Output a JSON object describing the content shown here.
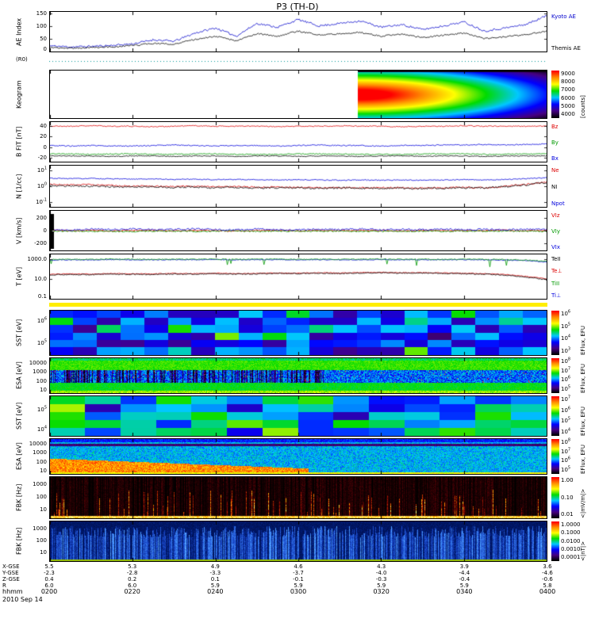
{
  "title": "P3 (TH-D)",
  "date_label": "2010 Sep 14",
  "time_axis": {
    "label": "hhmm",
    "ticks": [
      "0200",
      "0220",
      "0240",
      "0300",
      "0320",
      "0340",
      "0400"
    ]
  },
  "position_rows": [
    {
      "label": "X-GSE",
      "values": [
        "5.5",
        "5.3",
        "4.9",
        "4.6",
        "4.3",
        "3.9",
        "3.6"
      ]
    },
    {
      "label": "Y-GSE",
      "values": [
        "-2.3",
        "-2.8",
        "-3.3",
        "-3.7",
        "-4.0",
        "-4.4",
        "-4.6"
      ]
    },
    {
      "label": "Z-GSE",
      "values": [
        "0.4",
        "0.2",
        "0.1",
        "-0.1",
        "-0.3",
        "-0.4",
        "-0.6"
      ]
    },
    {
      "label": "R",
      "values": [
        "6.0",
        "6.0",
        "5.9",
        "5.9",
        "5.9",
        "5.9",
        "5.8"
      ]
    }
  ],
  "colors": {
    "separator": "#ffee00",
    "strip_line": "#009999",
    "red": "#dd0000",
    "green": "#009900",
    "blue": "#0000dd",
    "black": "#000000"
  },
  "chart_data": [
    {
      "id": "ae",
      "type": "line",
      "ylabel": "AE Index",
      "ylim": [
        0,
        155
      ],
      "yticks": [
        0,
        50,
        100,
        150
      ],
      "seed": 11,
      "series": [
        {
          "name": "Kyoto AE",
          "color": "#0000cc",
          "noise": 4,
          "control": [
            22,
            18,
            20,
            24,
            30,
            46,
            40,
            72,
            92,
            60,
            110,
            95,
            125,
            100,
            110,
            120,
            95,
            105,
            86,
            100,
            116,
            80,
            92,
            106,
            140
          ]
        },
        {
          "name": "Themis AE",
          "color": "#000000",
          "noise": 3,
          "control": [
            16,
            13,
            15,
            18,
            23,
            32,
            29,
            47,
            60,
            41,
            70,
            60,
            80,
            64,
            70,
            75,
            60,
            68,
            55,
            64,
            72,
            50,
            58,
            66,
            80
          ]
        }
      ],
      "right_labels": [
        {
          "text": "Kyoto AE",
          "color": "#0000cc"
        },
        {
          "text": "Themis AE",
          "color": "#000000"
        }
      ]
    },
    {
      "id": "strip",
      "type": "strip",
      "ylabel": "(R0)",
      "line_color": "#009999"
    },
    {
      "id": "keogram",
      "type": "keogram",
      "ylabel": "Keogram",
      "blob_start": 0.62,
      "colorbar": {
        "ticks": [
          "9000",
          "8000",
          "7000",
          "6000",
          "5000",
          "4000"
        ],
        "label": "[counts]"
      }
    },
    {
      "id": "bfit",
      "type": "line",
      "ylabel": "B FIT [nT]",
      "ylim": [
        -28,
        48
      ],
      "yticks": [
        -20,
        0,
        20,
        40
      ],
      "seed": 21,
      "series": [
        {
          "name": "Bz",
          "color": "#dd0000",
          "noise": 1.0,
          "control": [
            40,
            40,
            41,
            40,
            40,
            39,
            40,
            41,
            40,
            40,
            40,
            39,
            40,
            40,
            41,
            40,
            40,
            39,
            40,
            40,
            41,
            40,
            40,
            40,
            40
          ]
        },
        {
          "name": "Bx",
          "color": "#0000dd",
          "noise": 1.0,
          "control": [
            3,
            2,
            3,
            2,
            2,
            3,
            4,
            3,
            2,
            3,
            3,
            2,
            3,
            4,
            3,
            3,
            2,
            3,
            3,
            4,
            4,
            5,
            4,
            5,
            6
          ]
        },
        {
          "name": "By",
          "color": "#009900",
          "noise": 1.0,
          "control": [
            -13,
            -13,
            -14,
            -13,
            -13,
            -14,
            -14,
            -13,
            -13,
            -14,
            -14,
            -14,
            -13,
            -13,
            -13,
            -14,
            -14,
            -14,
            -13,
            -13,
            -13,
            -14,
            -14,
            -13,
            -13
          ]
        },
        {
          "name": "Bt",
          "color": "#000000",
          "noise": 0.8,
          "control": [
            -17,
            -17,
            -17,
            -18,
            -17,
            -17,
            -18,
            -17,
            -17,
            -18,
            -17,
            -17,
            -18,
            -17,
            -17,
            -18,
            -17,
            -17,
            -18,
            -17,
            -17,
            -18,
            -17,
            -17,
            -17
          ]
        }
      ],
      "right_labels": [
        {
          "text": "Bz",
          "color": "#dd0000"
        },
        {
          "text": "By",
          "color": "#009900"
        },
        {
          "text": "Bx",
          "color": "#0000dd"
        }
      ]
    },
    {
      "id": "ni",
      "type": "line",
      "yscale": "log",
      "ylabel": "N [1/cc]",
      "ylim": [
        0.05,
        20
      ],
      "yticks": [
        "10^1",
        "10^0",
        "10^-1"
      ],
      "seed": 31,
      "series": [
        {
          "name": "Npot",
          "color": "#0000dd",
          "noise": 0.03,
          "control": [
            3.2,
            3.0,
            3.1,
            2.9,
            2.8,
            2.9,
            2.7,
            2.8,
            2.6,
            2.7,
            2.6,
            2.5,
            2.6,
            2.5,
            2.4,
            2.5,
            2.4,
            2.5,
            2.4,
            2.5,
            2.6,
            2.5,
            2.7,
            3.0,
            3.4
          ]
        },
        {
          "name": "Ne",
          "color": "#dd0000",
          "noise": 0.05,
          "control": [
            1.3,
            1.2,
            1.25,
            1.1,
            1.0,
            1.05,
            0.95,
            1.0,
            0.9,
            0.95,
            0.85,
            0.9,
            0.85,
            0.8,
            0.85,
            0.8,
            0.82,
            0.8,
            0.78,
            0.8,
            0.85,
            0.8,
            1.0,
            1.3,
            1.8
          ]
        },
        {
          "name": "NI",
          "color": "#000000",
          "noise": 0.06,
          "control": [
            1.1,
            1.0,
            1.05,
            0.95,
            0.9,
            0.92,
            0.85,
            0.9,
            0.8,
            0.85,
            0.78,
            0.82,
            0.78,
            0.75,
            0.78,
            0.74,
            0.76,
            0.74,
            0.72,
            0.75,
            0.8,
            0.75,
            0.95,
            1.2,
            1.7
          ]
        }
      ],
      "right_labels": [
        {
          "text": "Ne",
          "color": "#dd0000"
        },
        {
          "text": "NI",
          "color": "#000000"
        },
        {
          "text": "Npot",
          "color": "#0000dd"
        }
      ]
    },
    {
      "id": "vi",
      "type": "line",
      "ylabel": "V [km/s]",
      "ylim": [
        -320,
        320
      ],
      "yticks": [
        200,
        0,
        -200
      ],
      "zero_line": true,
      "gap_bar": true,
      "seed": 41,
      "series": [
        {
          "name": "VIz",
          "color": "#dd0000",
          "noise": 10,
          "control": [
            5,
            0,
            8,
            -5,
            3,
            6,
            -4,
            5,
            0,
            -6,
            4,
            2,
            -3,
            5,
            -2,
            3,
            6,
            -5,
            2,
            4,
            -3,
            2,
            5,
            -2,
            3
          ]
        },
        {
          "name": "VIy",
          "color": "#009900",
          "noise": 12,
          "control": [
            -10,
            -5,
            -12,
            -8,
            -15,
            -6,
            -10,
            -14,
            -8,
            -5,
            -12,
            -9,
            -6,
            -11,
            -8,
            -13,
            -7,
            -10,
            -6,
            -12,
            -8,
            -10,
            -7,
            -9,
            -12
          ]
        },
        {
          "name": "VIx",
          "color": "#0000dd",
          "noise": 14,
          "control": [
            20,
            10,
            25,
            15,
            30,
            12,
            22,
            28,
            15,
            10,
            24,
            18,
            12,
            22,
            16,
            26,
            14,
            20,
            12,
            24,
            16,
            20,
            14,
            18,
            24
          ]
        }
      ],
      "right_labels": [
        {
          "text": "VIz",
          "color": "#dd0000"
        },
        {
          "text": "VIy",
          "color": "#009900"
        },
        {
          "text": "VIx",
          "color": "#0000dd"
        }
      ]
    },
    {
      "id": "temp",
      "type": "line",
      "yscale": "log",
      "ylabel": "T [eV]",
      "ylim": [
        0.1,
        3000
      ],
      "yticks": [
        "1000.0",
        "10.0",
        "0.1"
      ],
      "seed": 51,
      "series": [
        {
          "name": "Ti⊥",
          "color": "#0000dd",
          "noise": 0.04,
          "control": [
            800,
            850,
            820,
            900,
            870,
            840,
            880,
            860,
            900,
            850,
            870,
            890,
            860,
            880,
            850,
            870,
            900,
            860,
            880,
            850,
            870,
            840,
            800,
            700,
            500
          ]
        },
        {
          "name": "TiII",
          "color": "#009900",
          "noise": 0.05,
          "dips": 0.02,
          "control": [
            900,
            950,
            920,
            1000,
            970,
            940,
            980,
            960,
            1000,
            950,
            970,
            990,
            960,
            980,
            950,
            970,
            1000,
            960,
            980,
            950,
            970,
            940,
            900,
            800,
            600
          ]
        },
        {
          "name": "Te⊥",
          "color": "#dd0000",
          "noise": 0.04,
          "control": [
            30,
            32,
            31,
            35,
            33,
            32,
            36,
            34,
            38,
            35,
            36,
            40,
            38,
            42,
            40,
            44,
            46,
            42,
            44,
            40,
            38,
            34,
            28,
            18,
            10
          ]
        },
        {
          "name": "TeII",
          "color": "#000000",
          "noise": 0.05,
          "control": [
            26,
            28,
            27,
            30,
            29,
            28,
            32,
            30,
            34,
            31,
            32,
            36,
            34,
            38,
            36,
            40,
            42,
            38,
            40,
            36,
            34,
            30,
            24,
            15,
            8
          ]
        }
      ],
      "right_labels": [
        {
          "text": "TeII",
          "color": "#000000"
        },
        {
          "text": "Te⊥",
          "color": "#dd0000"
        },
        {
          "text": "TiII",
          "color": "#009900"
        },
        {
          "text": "Ti⊥",
          "color": "#0000dd"
        }
      ]
    },
    {
      "id": "sep",
      "type": "separator",
      "color": "#ffee00"
    },
    {
      "id": "sst_ion",
      "type": "mosaic",
      "ylabel": "SST [eV]",
      "yscale": "log",
      "ylim": [
        30000,
        3000000
      ],
      "yticks": [
        "10^6",
        "10^5"
      ],
      "seed": 61,
      "cols": 21,
      "rows": 6,
      "base": 0.3,
      "vary": 0.14,
      "colorbar": {
        "ticks": [
          "10^6",
          "10^5",
          "10^4",
          "10^3"
        ],
        "label": "EFlux, EFU"
      }
    },
    {
      "id": "esa_ion",
      "type": "esa_ion",
      "ylabel": "ESA [eV]",
      "yscale": "log",
      "ylim": [
        5,
        30000
      ],
      "yticks": [
        "10000",
        "1000",
        "100",
        "10"
      ],
      "seed": 71,
      "colorbar": {
        "ticks": [
          "10^8",
          "10^7",
          "10^6",
          "10^5"
        ],
        "label": "EFlux, EFU"
      }
    },
    {
      "id": "sst_elec",
      "type": "mosaic",
      "ylabel": "SST [eV]",
      "yscale": "log",
      "ylim": [
        5000,
        500000
      ],
      "yticks": [
        "10^5",
        "10^4"
      ],
      "seed": 81,
      "cols": 14,
      "rows": 5,
      "base": 0.45,
      "vary": 0.15,
      "colorbar": {
        "ticks": [
          "10^7",
          "10^6",
          "10^5",
          "10^4"
        ],
        "label": "EFlux, EFU"
      }
    },
    {
      "id": "esa_elec",
      "type": "esa_elec",
      "ylabel": "ESA [eV]",
      "yscale": "log",
      "ylim": [
        5,
        30000
      ],
      "yticks": [
        "10000",
        "1000",
        "100",
        "10"
      ],
      "seed": 91,
      "colorbar": {
        "ticks": [
          "10^8",
          "10^7",
          "10^6",
          "10^5"
        ],
        "label": "EFlux, EFU"
      }
    },
    {
      "id": "fbk_e",
      "type": "fbk_e",
      "ylabel": "FBK [Hz]",
      "yscale": "log",
      "ylim": [
        2,
        4000
      ],
      "yticks": [
        "1000",
        "100",
        "10"
      ],
      "seed": 101,
      "colorbar": {
        "ticks": [
          "1.00",
          "0.10",
          "0.01"
        ],
        "label": "<|mV/m|>"
      }
    },
    {
      "id": "fbk_b",
      "type": "fbk_b",
      "ylabel": "FBK [Hz]",
      "yscale": "log",
      "ylim": [
        2,
        4000
      ],
      "yticks": [
        "1000",
        "100",
        "10"
      ],
      "seed": 111,
      "colorbar": {
        "ticks": [
          "1.0000",
          "0.1000",
          "0.0100",
          "0.0010",
          "0.0001"
        ],
        "label": "<|nT|>"
      }
    }
  ]
}
